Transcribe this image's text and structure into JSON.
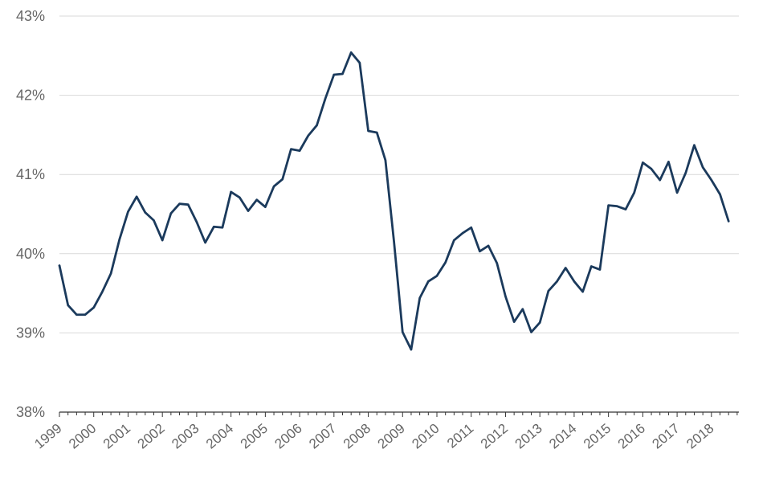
{
  "chart_data": {
    "type": "line",
    "title": "",
    "xlabel": "",
    "ylabel": "",
    "ylim": [
      38,
      43
    ],
    "y_ticks": [
      "38%",
      "39%",
      "40%",
      "41%",
      "42%",
      "43%"
    ],
    "x_ticks": [
      "1999",
      "2000",
      "2001",
      "2002",
      "2003",
      "2004",
      "2005",
      "2006",
      "2007",
      "2008",
      "2009",
      "2010",
      "2011",
      "2012",
      "2013",
      "2014",
      "2015",
      "2016",
      "2017",
      "2018"
    ],
    "grid": true,
    "legend": "none",
    "line_color": "#1b3a5c",
    "series": [
      {
        "name": "",
        "x": [
          "1999Q1",
          "1999Q2",
          "1999Q3",
          "1999Q4",
          "2000Q1",
          "2000Q2",
          "2000Q3",
          "2000Q4",
          "2001Q1",
          "2001Q2",
          "2001Q3",
          "2001Q4",
          "2002Q1",
          "2002Q2",
          "2002Q3",
          "2002Q4",
          "2003Q1",
          "2003Q2",
          "2003Q3",
          "2003Q4",
          "2004Q1",
          "2004Q2",
          "2004Q3",
          "2004Q4",
          "2005Q1",
          "2005Q2",
          "2005Q3",
          "2005Q4",
          "2006Q1",
          "2006Q2",
          "2006Q3",
          "2006Q4",
          "2007Q1",
          "2007Q2",
          "2007Q3",
          "2007Q4",
          "2008Q1",
          "2008Q2",
          "2008Q3",
          "2008Q4",
          "2009Q1",
          "2009Q2",
          "2009Q3",
          "2009Q4",
          "2010Q1",
          "2010Q2",
          "2010Q3",
          "2010Q4",
          "2011Q1",
          "2011Q2",
          "2011Q3",
          "2011Q4",
          "2012Q1",
          "2012Q2",
          "2012Q3",
          "2012Q4",
          "2013Q1",
          "2013Q2",
          "2013Q3",
          "2013Q4",
          "2014Q1",
          "2014Q2",
          "2014Q3",
          "2014Q4",
          "2015Q1",
          "2015Q2",
          "2015Q3",
          "2015Q4",
          "2016Q1",
          "2016Q2",
          "2016Q3",
          "2016Q4",
          "2017Q1",
          "2017Q2",
          "2017Q3",
          "2017Q4",
          "2018Q1",
          "2018Q2",
          "2018Q3"
        ],
        "values": [
          39.85,
          39.35,
          39.23,
          39.23,
          39.32,
          39.52,
          39.75,
          40.18,
          40.53,
          40.72,
          40.52,
          40.42,
          40.17,
          40.51,
          40.63,
          40.62,
          40.4,
          40.14,
          40.34,
          40.33,
          40.78,
          40.71,
          40.54,
          40.68,
          40.59,
          40.85,
          40.94,
          41.32,
          41.3,
          41.49,
          41.62,
          41.96,
          42.26,
          42.27,
          42.54,
          42.41,
          41.55,
          41.53,
          41.18,
          40.15,
          39.01,
          38.79,
          39.44,
          39.65,
          39.72,
          39.89,
          40.17,
          40.26,
          40.33,
          40.03,
          40.1,
          39.88,
          39.46,
          39.14,
          39.3,
          39.01,
          39.13,
          39.53,
          39.65,
          39.82,
          39.65,
          39.52,
          39.84,
          39.8,
          40.61,
          40.6,
          40.56,
          40.77,
          41.15,
          41.07,
          40.93,
          41.16,
          40.77,
          41.02,
          41.37,
          41.09,
          40.93,
          40.75,
          40.41
        ]
      }
    ]
  }
}
